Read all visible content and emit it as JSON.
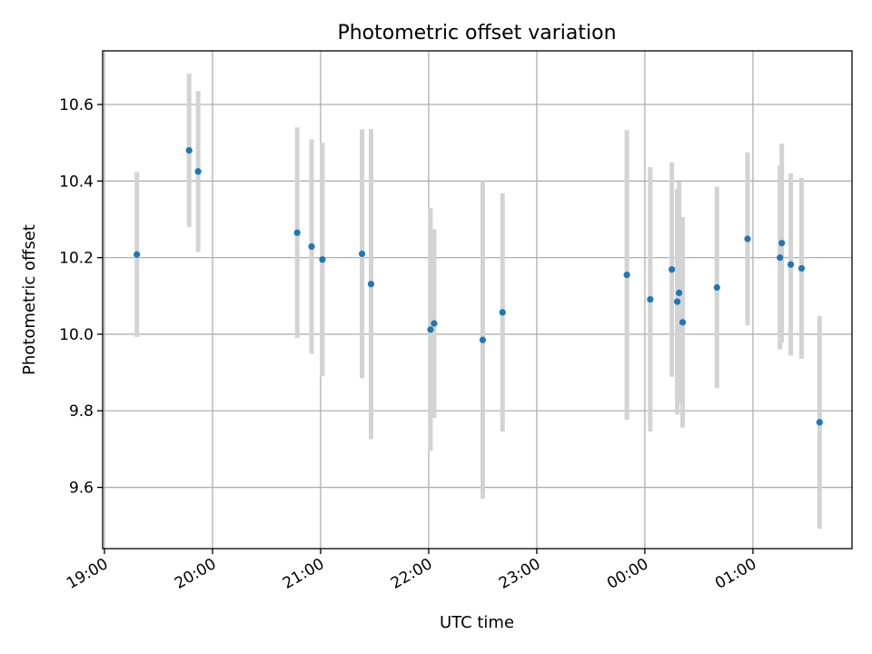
{
  "chart_data": {
    "type": "scatter",
    "title": "Photometric offset variation",
    "xlabel": "UTC time",
    "ylabel": "Photometric offset",
    "x_ticks": [
      "19:00",
      "20:00",
      "21:00",
      "22:00",
      "23:00",
      "00:00",
      "01:00"
    ],
    "xlim": [
      "18:59",
      "01:55"
    ],
    "y_ticks": [
      "9.6",
      "9.8",
      "10.0",
      "10.2",
      "10.4",
      "10.6"
    ],
    "ylim": [
      9.44,
      10.74
    ],
    "grid": true,
    "colors": {
      "points": "#1f77b4",
      "error_bars": "#d3d3d3",
      "grid": "#b0b0b0"
    },
    "points": [
      {
        "t": "19:18",
        "y": 10.208,
        "err": 0.215
      },
      {
        "t": "19:47",
        "y": 10.48,
        "err": 0.2
      },
      {
        "t": "19:52",
        "y": 10.425,
        "err": 0.21
      },
      {
        "t": "20:47",
        "y": 10.265,
        "err": 0.275
      },
      {
        "t": "20:55",
        "y": 10.229,
        "err": 0.28
      },
      {
        "t": "21:01",
        "y": 10.195,
        "err": 0.305
      },
      {
        "t": "21:23",
        "y": 10.21,
        "err": 0.325
      },
      {
        "t": "21:28",
        "y": 10.131,
        "err": 0.405
      },
      {
        "t": "22:01",
        "y": 10.012,
        "err": 0.317
      },
      {
        "t": "22:03",
        "y": 10.028,
        "err": 0.246
      },
      {
        "t": "22:30",
        "y": 9.985,
        "err": 0.415
      },
      {
        "t": "22:41",
        "y": 10.057,
        "err": 0.311
      },
      {
        "t": "23:50",
        "y": 10.155,
        "err": 0.378
      },
      {
        "t": "00:03",
        "y": 10.091,
        "err": 0.345
      },
      {
        "t": "00:15",
        "y": 10.169,
        "err": 0.28
      },
      {
        "t": "00:18",
        "y": 10.085,
        "err": 0.295
      },
      {
        "t": "00:19",
        "y": 10.108,
        "err": 0.29
      },
      {
        "t": "00:21",
        "y": 10.031,
        "err": 0.275
      },
      {
        "t": "00:40",
        "y": 10.122,
        "err": 0.263
      },
      {
        "t": "00:57",
        "y": 10.249,
        "err": 0.226
      },
      {
        "t": "01:15",
        "y": 10.2,
        "err": 0.24
      },
      {
        "t": "01:16",
        "y": 10.238,
        "err": 0.26
      },
      {
        "t": "01:21",
        "y": 10.182,
        "err": 0.238
      },
      {
        "t": "01:27",
        "y": 10.172,
        "err": 0.236
      },
      {
        "t": "01:37",
        "y": 9.77,
        "err": 0.278
      }
    ]
  }
}
